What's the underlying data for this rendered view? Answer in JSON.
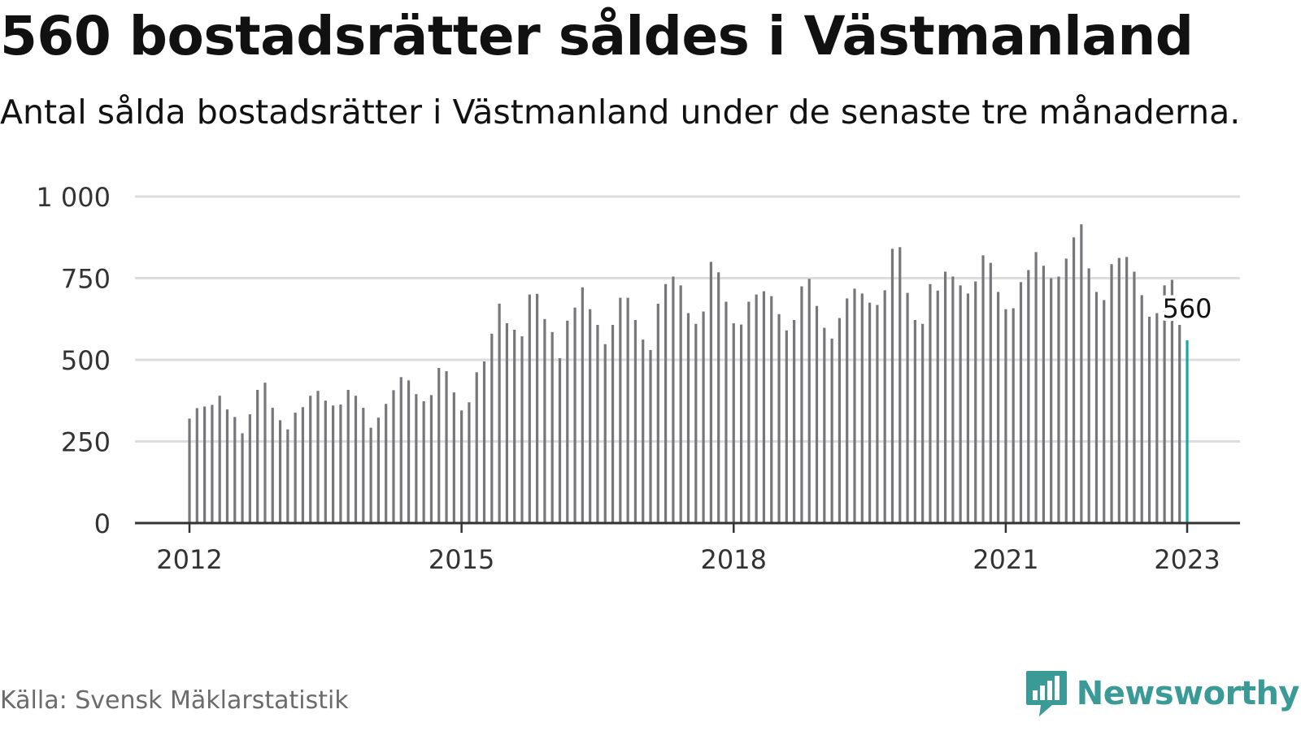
{
  "title": "560 bostadsrätter såldes i Västmanland",
  "subtitle": "Antal sålda bostadsrätter i Västmanland under de senaste tre månaderna.",
  "source": "Källa: Svensk Mäklarstatistik",
  "brand": {
    "name": "Newsworthy",
    "icon": "newsworthy-logo-icon",
    "color": "#3a9b96"
  },
  "colors": {
    "bar": "#77777b",
    "highlight": "#17a99f",
    "grid": "#dddddd",
    "axis": "#333333"
  },
  "chart_data": {
    "type": "bar",
    "title": "",
    "xlabel": "",
    "ylabel": "",
    "ylim": [
      0,
      1000
    ],
    "y_ticks": [
      0,
      250,
      500,
      750,
      1000
    ],
    "y_tick_labels": [
      "0",
      "250",
      "500",
      "750",
      "1 000"
    ],
    "x_ticks": [
      {
        "label": "2012",
        "value": "2012-01"
      },
      {
        "label": "2015",
        "value": "2015-01"
      },
      {
        "label": "2018",
        "value": "2018-01"
      },
      {
        "label": "2021",
        "value": "2021-01"
      },
      {
        "label": "2023",
        "value": "2023-01"
      }
    ],
    "grid": true,
    "x_frequency": "monthly",
    "first_period": "2012-01",
    "last_period": "2023-01",
    "highlight": {
      "period": "2023-01",
      "value": 560,
      "label": "560"
    },
    "values": [
      320,
      352,
      357,
      362,
      390,
      348,
      325,
      275,
      333,
      408,
      430,
      353,
      315,
      287,
      338,
      355,
      390,
      405,
      375,
      360,
      363,
      408,
      390,
      353,
      292,
      323,
      365,
      407,
      447,
      437,
      395,
      373,
      392,
      475,
      465,
      400,
      345,
      370,
      462,
      495,
      580,
      672,
      612,
      592,
      572,
      700,
      702,
      625,
      585,
      505,
      620,
      660,
      722,
      655,
      607,
      548,
      607,
      690,
      690,
      622,
      562,
      530,
      672,
      732,
      755,
      728,
      643,
      610,
      648,
      800,
      768,
      678,
      612,
      608,
      678,
      700,
      710,
      695,
      640,
      590,
      622,
      725,
      748,
      665,
      598,
      565,
      628,
      688,
      718,
      703,
      675,
      668,
      713,
      840,
      845,
      705,
      622,
      610,
      732,
      712,
      770,
      755,
      728,
      703,
      740,
      820,
      797,
      708,
      655,
      658,
      738,
      775,
      830,
      788,
      750,
      755,
      810,
      875,
      915,
      780,
      708,
      683,
      793,
      812,
      815,
      770,
      698,
      632,
      643,
      728,
      745,
      607,
      560
    ]
  }
}
